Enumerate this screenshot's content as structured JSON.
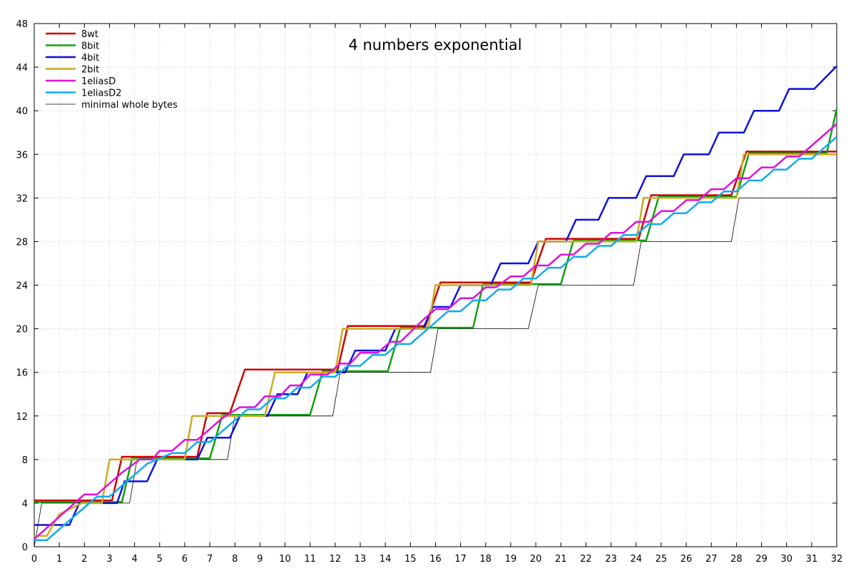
{
  "chart_data": {
    "type": "line",
    "title": "4 numbers exponential",
    "xlabel": "",
    "ylabel": "",
    "xlim": [
      0,
      32
    ],
    "ylim": [
      0,
      48
    ],
    "x_ticks": [
      "0",
      "1",
      "2",
      "3",
      "4",
      "5",
      "6",
      "7",
      "8",
      "9",
      "10",
      "11",
      "12",
      "13",
      "14",
      "15",
      "16",
      "17",
      "18",
      "19",
      "20",
      "21",
      "22",
      "23",
      "24",
      "25",
      "26",
      "27",
      "28",
      "29",
      "30",
      "31",
      "32"
    ],
    "y_ticks": [
      "0",
      "4",
      "8",
      "12",
      "16",
      "20",
      "24",
      "28",
      "32",
      "36",
      "40",
      "44",
      "48"
    ],
    "grid": true,
    "legend_position": "top-left",
    "series": [
      {
        "name": "8wt",
        "color": "#cc0000",
        "width": 2.5,
        "points": [
          [
            0,
            4.25
          ],
          [
            3.1,
            4.25
          ],
          [
            3.5,
            8.25
          ],
          [
            6.5,
            8.25
          ],
          [
            6.9,
            12.25
          ],
          [
            7.8,
            12.25
          ],
          [
            8.4,
            16.25
          ],
          [
            12.1,
            16.25
          ],
          [
            12.5,
            20.25
          ],
          [
            15.6,
            20.25
          ],
          [
            16.2,
            24.25
          ],
          [
            19.8,
            24.25
          ],
          [
            20.4,
            28.25
          ],
          [
            24.1,
            28.25
          ],
          [
            24.6,
            32.25
          ],
          [
            27.8,
            32.25
          ],
          [
            28.4,
            36.25
          ],
          [
            32,
            36.25
          ]
        ]
      },
      {
        "name": "8bit",
        "color": "#11a011",
        "width": 2.5,
        "points": [
          [
            0,
            4.1
          ],
          [
            3.5,
            4.1
          ],
          [
            3.9,
            8.1
          ],
          [
            7,
            8.1
          ],
          [
            7.5,
            12.1
          ],
          [
            11,
            12.1
          ],
          [
            11.5,
            16.1
          ],
          [
            14.1,
            16.1
          ],
          [
            14.6,
            20.1
          ],
          [
            17.5,
            20.1
          ],
          [
            17.9,
            24.1
          ],
          [
            21,
            24.1
          ],
          [
            21.5,
            28.1
          ],
          [
            24.4,
            28.1
          ],
          [
            24.9,
            32.1
          ],
          [
            28,
            32.1
          ],
          [
            28.5,
            36.1
          ],
          [
            31.6,
            36.1
          ],
          [
            32,
            40.2
          ]
        ]
      },
      {
        "name": "4bit",
        "color": "#1010dd",
        "width": 2.5,
        "points": [
          [
            0,
            2
          ],
          [
            1.4,
            2
          ],
          [
            1.8,
            4
          ],
          [
            3.3,
            4
          ],
          [
            3.6,
            6
          ],
          [
            4.5,
            6
          ],
          [
            4.9,
            8
          ],
          [
            6.5,
            8
          ],
          [
            6.9,
            10
          ],
          [
            7.8,
            10
          ],
          [
            8.2,
            12
          ],
          [
            9.3,
            12
          ],
          [
            9.7,
            14
          ],
          [
            10.5,
            14
          ],
          [
            10.9,
            16
          ],
          [
            12.4,
            16
          ],
          [
            12.8,
            18
          ],
          [
            14,
            18
          ],
          [
            14.4,
            20
          ],
          [
            15.5,
            20
          ],
          [
            15.9,
            22
          ],
          [
            16.6,
            22
          ],
          [
            17,
            24
          ],
          [
            18.2,
            24
          ],
          [
            18.6,
            26
          ],
          [
            19.7,
            26
          ],
          [
            20.1,
            28
          ],
          [
            21.2,
            28
          ],
          [
            21.6,
            30
          ],
          [
            22.5,
            30
          ],
          [
            22.9,
            32
          ],
          [
            24,
            32
          ],
          [
            24.4,
            34
          ],
          [
            25.5,
            34
          ],
          [
            25.9,
            36
          ],
          [
            26.9,
            36
          ],
          [
            27.3,
            38
          ],
          [
            28.3,
            38
          ],
          [
            28.7,
            40
          ],
          [
            29.7,
            40
          ],
          [
            30.1,
            42
          ],
          [
            31.1,
            42
          ],
          [
            32,
            44.1
          ]
        ]
      },
      {
        "name": "2bit",
        "color": "#ccaa22",
        "width": 2.5,
        "points": [
          [
            0,
            1
          ],
          [
            0.5,
            1
          ],
          [
            1,
            3
          ],
          [
            1.9,
            4
          ],
          [
            2.7,
            4
          ],
          [
            3,
            8
          ],
          [
            6,
            8
          ],
          [
            6.3,
            12
          ],
          [
            8.2,
            12
          ],
          [
            9.2,
            12
          ],
          [
            9.6,
            16
          ],
          [
            12,
            16
          ],
          [
            12.3,
            20
          ],
          [
            15.7,
            20
          ],
          [
            16,
            24
          ],
          [
            19.8,
            24
          ],
          [
            20.1,
            28
          ],
          [
            24,
            28
          ],
          [
            24.3,
            32
          ],
          [
            28,
            32
          ],
          [
            28.3,
            36
          ],
          [
            32,
            36
          ]
        ]
      },
      {
        "name": "1eliasD",
        "color": "#dd11dd",
        "width": 2.5,
        "points": [
          [
            0,
            0.7
          ],
          [
            2,
            4.8
          ],
          [
            2.5,
            4.8
          ],
          [
            3.5,
            6.8
          ],
          [
            4.2,
            8
          ],
          [
            4.7,
            8
          ],
          [
            5,
            8.8
          ],
          [
            5.5,
            8.8
          ],
          [
            6,
            9.8
          ],
          [
            6.5,
            9.8
          ],
          [
            7.5,
            11.8
          ],
          [
            8.2,
            12.8
          ],
          [
            8.8,
            12.8
          ],
          [
            9.2,
            13.8
          ],
          [
            9.8,
            13.8
          ],
          [
            10.2,
            14.8
          ],
          [
            10.6,
            14.8
          ],
          [
            11,
            15.8
          ],
          [
            11.7,
            15.8
          ],
          [
            12.2,
            16.8
          ],
          [
            12.6,
            16.8
          ],
          [
            13,
            17.8
          ],
          [
            13.7,
            17.8
          ],
          [
            14.2,
            18.8
          ],
          [
            14.6,
            18.8
          ],
          [
            15.5,
            20.8
          ],
          [
            16,
            21.8
          ],
          [
            16.5,
            21.8
          ],
          [
            17,
            22.8
          ],
          [
            17.5,
            22.8
          ],
          [
            18,
            23.8
          ],
          [
            18.4,
            23.8
          ],
          [
            19,
            24.8
          ],
          [
            19.5,
            24.8
          ],
          [
            20,
            25.8
          ],
          [
            20.5,
            25.8
          ],
          [
            21,
            26.8
          ],
          [
            21.5,
            26.8
          ],
          [
            22,
            27.8
          ],
          [
            22.5,
            27.8
          ],
          [
            23,
            28.8
          ],
          [
            23.5,
            28.8
          ],
          [
            24,
            29.8
          ],
          [
            24.5,
            29.8
          ],
          [
            25,
            30.8
          ],
          [
            25.5,
            30.8
          ],
          [
            26,
            31.8
          ],
          [
            26.5,
            31.8
          ],
          [
            27,
            32.8
          ],
          [
            27.5,
            32.8
          ],
          [
            28,
            33.8
          ],
          [
            28.5,
            33.8
          ],
          [
            29,
            34.8
          ],
          [
            29.5,
            34.8
          ],
          [
            30,
            35.8
          ],
          [
            30.5,
            35.8
          ],
          [
            32,
            38.8
          ]
        ]
      },
      {
        "name": "1eliasD2",
        "color": "#11aaee",
        "width": 2.5,
        "points": [
          [
            0,
            0.6
          ],
          [
            0.5,
            0.6
          ],
          [
            2,
            3.6
          ],
          [
            2.5,
            4.6
          ],
          [
            3,
            4.6
          ],
          [
            3.5,
            5.6
          ],
          [
            4.5,
            7.6
          ],
          [
            5.5,
            8.6
          ],
          [
            6,
            8.6
          ],
          [
            6.5,
            9.6
          ],
          [
            7,
            9.6
          ],
          [
            7.5,
            10.6
          ],
          [
            8,
            11.6
          ],
          [
            8.5,
            12.6
          ],
          [
            9,
            12.6
          ],
          [
            9.5,
            13.6
          ],
          [
            10,
            13.6
          ],
          [
            10.5,
            14.6
          ],
          [
            11,
            14.6
          ],
          [
            11.5,
            15.6
          ],
          [
            12,
            15.6
          ],
          [
            12.5,
            16.6
          ],
          [
            13,
            16.6
          ],
          [
            13.5,
            17.6
          ],
          [
            14,
            17.6
          ],
          [
            14.5,
            18.6
          ],
          [
            15,
            18.6
          ],
          [
            15.5,
            19.6
          ],
          [
            16,
            20.6
          ],
          [
            16.5,
            21.6
          ],
          [
            17,
            21.6
          ],
          [
            17.5,
            22.6
          ],
          [
            18,
            22.6
          ],
          [
            18.5,
            23.6
          ],
          [
            19,
            23.6
          ],
          [
            19.5,
            24.6
          ],
          [
            20,
            24.6
          ],
          [
            20.5,
            25.6
          ],
          [
            21,
            25.6
          ],
          [
            21.5,
            26.6
          ],
          [
            22,
            26.6
          ],
          [
            22.5,
            27.6
          ],
          [
            23,
            27.6
          ],
          [
            23.5,
            28.6
          ],
          [
            24,
            28.6
          ],
          [
            24.5,
            29.6
          ],
          [
            25,
            29.6
          ],
          [
            25.5,
            30.6
          ],
          [
            26,
            30.6
          ],
          [
            26.5,
            31.6
          ],
          [
            27,
            31.6
          ],
          [
            27.5,
            32.6
          ],
          [
            28,
            32.6
          ],
          [
            28.5,
            33.6
          ],
          [
            29,
            33.6
          ],
          [
            29.5,
            34.6
          ],
          [
            30,
            34.6
          ],
          [
            30.5,
            35.6
          ],
          [
            31,
            35.6
          ],
          [
            32,
            37.6
          ]
        ]
      },
      {
        "name": "minimal whole bytes",
        "color": "#000000",
        "width": 0.8,
        "points": [
          [
            0,
            0
          ],
          [
            0.3,
            4
          ],
          [
            3.8,
            4
          ],
          [
            4.1,
            8
          ],
          [
            7.7,
            8
          ],
          [
            8,
            12
          ],
          [
            11.9,
            12
          ],
          [
            12.2,
            16
          ],
          [
            15.8,
            16
          ],
          [
            16.1,
            20
          ],
          [
            19.7,
            20
          ],
          [
            20.1,
            24
          ],
          [
            23.9,
            24
          ],
          [
            24.2,
            28
          ],
          [
            27.8,
            28
          ],
          [
            28.1,
            32
          ],
          [
            32,
            32
          ]
        ]
      }
    ]
  }
}
